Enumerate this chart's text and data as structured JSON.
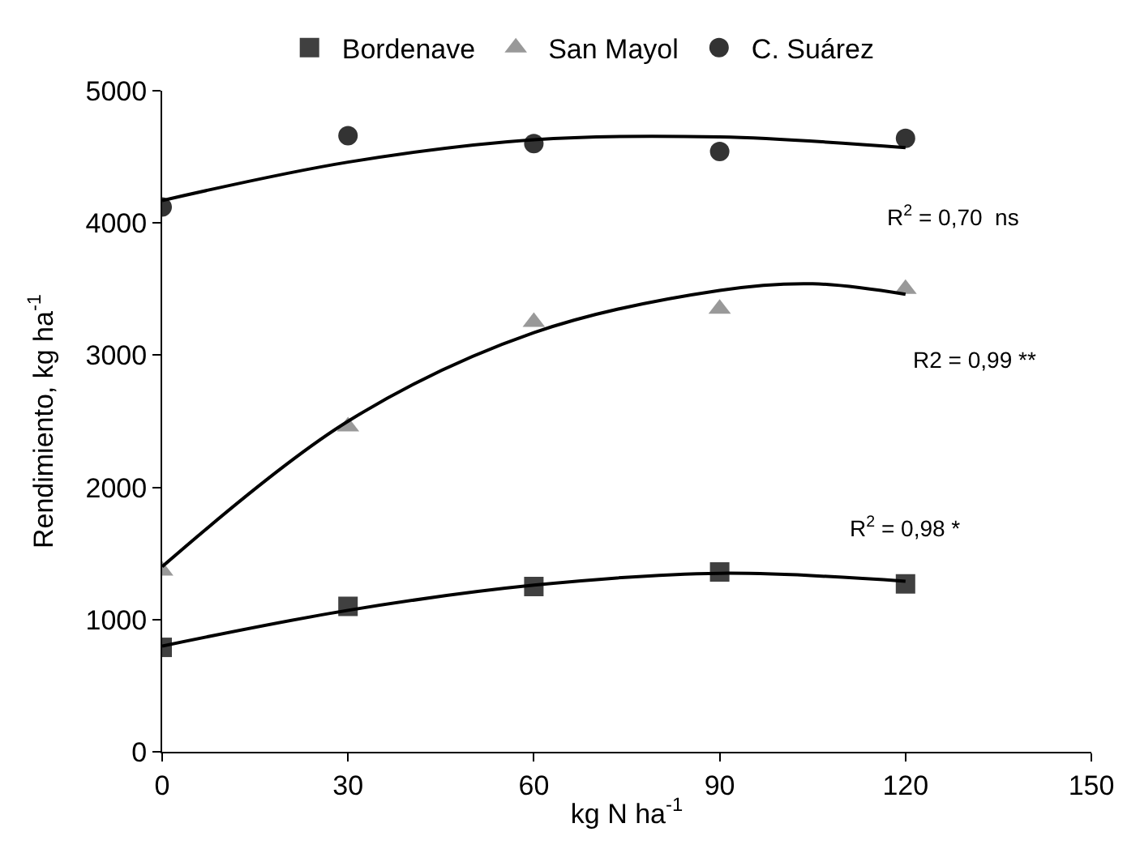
{
  "chart_data": {
    "type": "scatter",
    "xlabel": "kg N ha$^{-1}$",
    "ylabel": "Rendimiento, kg ha$^{-1}$",
    "x": [
      0,
      30,
      60,
      90,
      120
    ],
    "series": [
      {
        "name": "Bordenave",
        "color": "#404040",
        "marker": "square",
        "values": [
          790,
          1100,
          1250,
          1360,
          1270
        ]
      },
      {
        "name": "San Mayol",
        "color": "#999999",
        "marker": "triangle",
        "values": [
          1370,
          2460,
          3250,
          3350,
          3500
        ]
      },
      {
        "name": "C. Suárez",
        "color": "#333333",
        "marker": "circle",
        "values": [
          4120,
          4660,
          4600,
          4540,
          4640
        ]
      },
      {
        "type": "line",
        "color": "#000000",
        "x": [
          0,
          30,
          60,
          90,
          120
        ],
        "values": [
          800,
          1070,
          1260,
          1350,
          1290
        ]
      },
      {
        "type": "line",
        "color": "#000000",
        "x": [
          0,
          30,
          60,
          90,
          105,
          120
        ],
        "values": [
          1400,
          2500,
          3170,
          3490,
          3540,
          3460
        ]
      },
      {
        "type": "line",
        "color": "#000000",
        "x": [
          0,
          30,
          60,
          90,
          120
        ],
        "values": [
          4170,
          4460,
          4630,
          4650,
          4570
        ]
      }
    ],
    "annotations": [
      "R$^{2}$ = 0,70  ns",
      "R2 = 0,99 **",
      "R$^{2}$ = 0,98 *"
    ],
    "xlim": [
      0,
      150
    ],
    "xticks": [
      0,
      30,
      60,
      90,
      120,
      150
    ],
    "ylim": [
      0,
      5000
    ],
    "yticks": [
      0,
      1000,
      2000,
      3000,
      4000,
      5000
    ],
    "legend": "top"
  }
}
